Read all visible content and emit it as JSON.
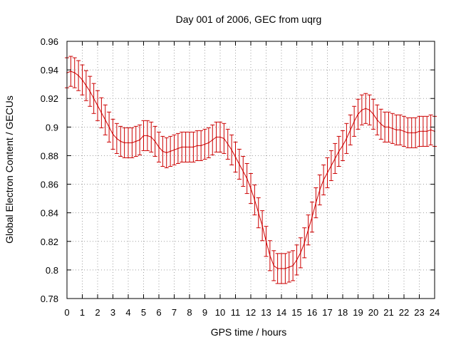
{
  "chart_data": {
    "type": "line",
    "title": "Day 001 of 2006, GEC from uqrg",
    "xlabel": "GPS time / hours",
    "ylabel": "Global Electron Content / GECUs",
    "xlim": [
      0,
      24
    ],
    "ylim": [
      0.78,
      0.96
    ],
    "grid": true,
    "xticks": [
      0,
      1,
      2,
      3,
      4,
      5,
      6,
      7,
      8,
      9,
      10,
      11,
      12,
      13,
      14,
      15,
      16,
      17,
      18,
      19,
      20,
      21,
      22,
      23,
      24
    ],
    "xtick_labels": [
      "0",
      "1",
      "2",
      "3",
      "4",
      "5",
      "6",
      "7",
      "8",
      "9",
      "10",
      "11",
      "12",
      "13",
      "14",
      "15",
      "16",
      "17",
      "18",
      "19",
      "20",
      "21",
      "22",
      "23",
      "24"
    ],
    "yticks": [
      0.78,
      0.8,
      0.82,
      0.84,
      0.86,
      0.88,
      0.9,
      0.92,
      0.94,
      0.96
    ],
    "ytick_labels": [
      "0.78",
      "0.8",
      "0.82",
      "0.84",
      "0.86",
      "0.88",
      "0.9",
      "0.92",
      "0.94",
      "0.96"
    ],
    "series": [
      {
        "name": "GEC",
        "color": "#cc0000",
        "x": [
          0,
          0.25,
          0.5,
          0.75,
          1,
          1.25,
          1.5,
          1.75,
          2,
          2.25,
          2.5,
          2.75,
          3,
          3.25,
          3.5,
          3.75,
          4,
          4.25,
          4.5,
          4.75,
          5,
          5.25,
          5.5,
          5.75,
          6,
          6.25,
          6.5,
          6.75,
          7,
          7.25,
          7.5,
          7.75,
          8,
          8.25,
          8.5,
          8.75,
          9,
          9.25,
          9.5,
          9.75,
          10,
          10.25,
          10.5,
          10.75,
          11,
          11.25,
          11.5,
          11.75,
          12,
          12.25,
          12.5,
          12.75,
          13,
          13.25,
          13.5,
          13.75,
          14,
          14.25,
          14.5,
          14.75,
          15,
          15.25,
          15.5,
          15.75,
          16,
          16.25,
          16.5,
          16.75,
          17,
          17.25,
          17.5,
          17.75,
          18,
          18.25,
          18.5,
          18.75,
          19,
          19.25,
          19.5,
          19.75,
          20,
          20.25,
          20.5,
          20.75,
          21,
          21.25,
          21.5,
          21.75,
          22,
          22.25,
          22.5,
          22.75,
          23,
          23.25,
          23.5,
          23.75,
          24
        ],
        "y": [
          0.938,
          0.939,
          0.938,
          0.936,
          0.933,
          0.929,
          0.925,
          0.92,
          0.915,
          0.91,
          0.905,
          0.9,
          0.895,
          0.892,
          0.89,
          0.889,
          0.889,
          0.889,
          0.89,
          0.891,
          0.894,
          0.894,
          0.893,
          0.89,
          0.886,
          0.883,
          0.882,
          0.883,
          0.884,
          0.885,
          0.886,
          0.886,
          0.886,
          0.886,
          0.887,
          0.887,
          0.888,
          0.889,
          0.891,
          0.893,
          0.893,
          0.892,
          0.888,
          0.884,
          0.879,
          0.874,
          0.869,
          0.864,
          0.857,
          0.849,
          0.84,
          0.831,
          0.82,
          0.81,
          0.803,
          0.801,
          0.801,
          0.801,
          0.802,
          0.803,
          0.807,
          0.812,
          0.819,
          0.828,
          0.837,
          0.847,
          0.856,
          0.863,
          0.868,
          0.873,
          0.878,
          0.883,
          0.887,
          0.892,
          0.898,
          0.904,
          0.909,
          0.912,
          0.913,
          0.912,
          0.909,
          0.905,
          0.902,
          0.9,
          0.9,
          0.899,
          0.898,
          0.898,
          0.897,
          0.896,
          0.896,
          0.896,
          0.897,
          0.897,
          0.897,
          0.898,
          0.897
        ],
        "error": 0.0105
      }
    ]
  }
}
